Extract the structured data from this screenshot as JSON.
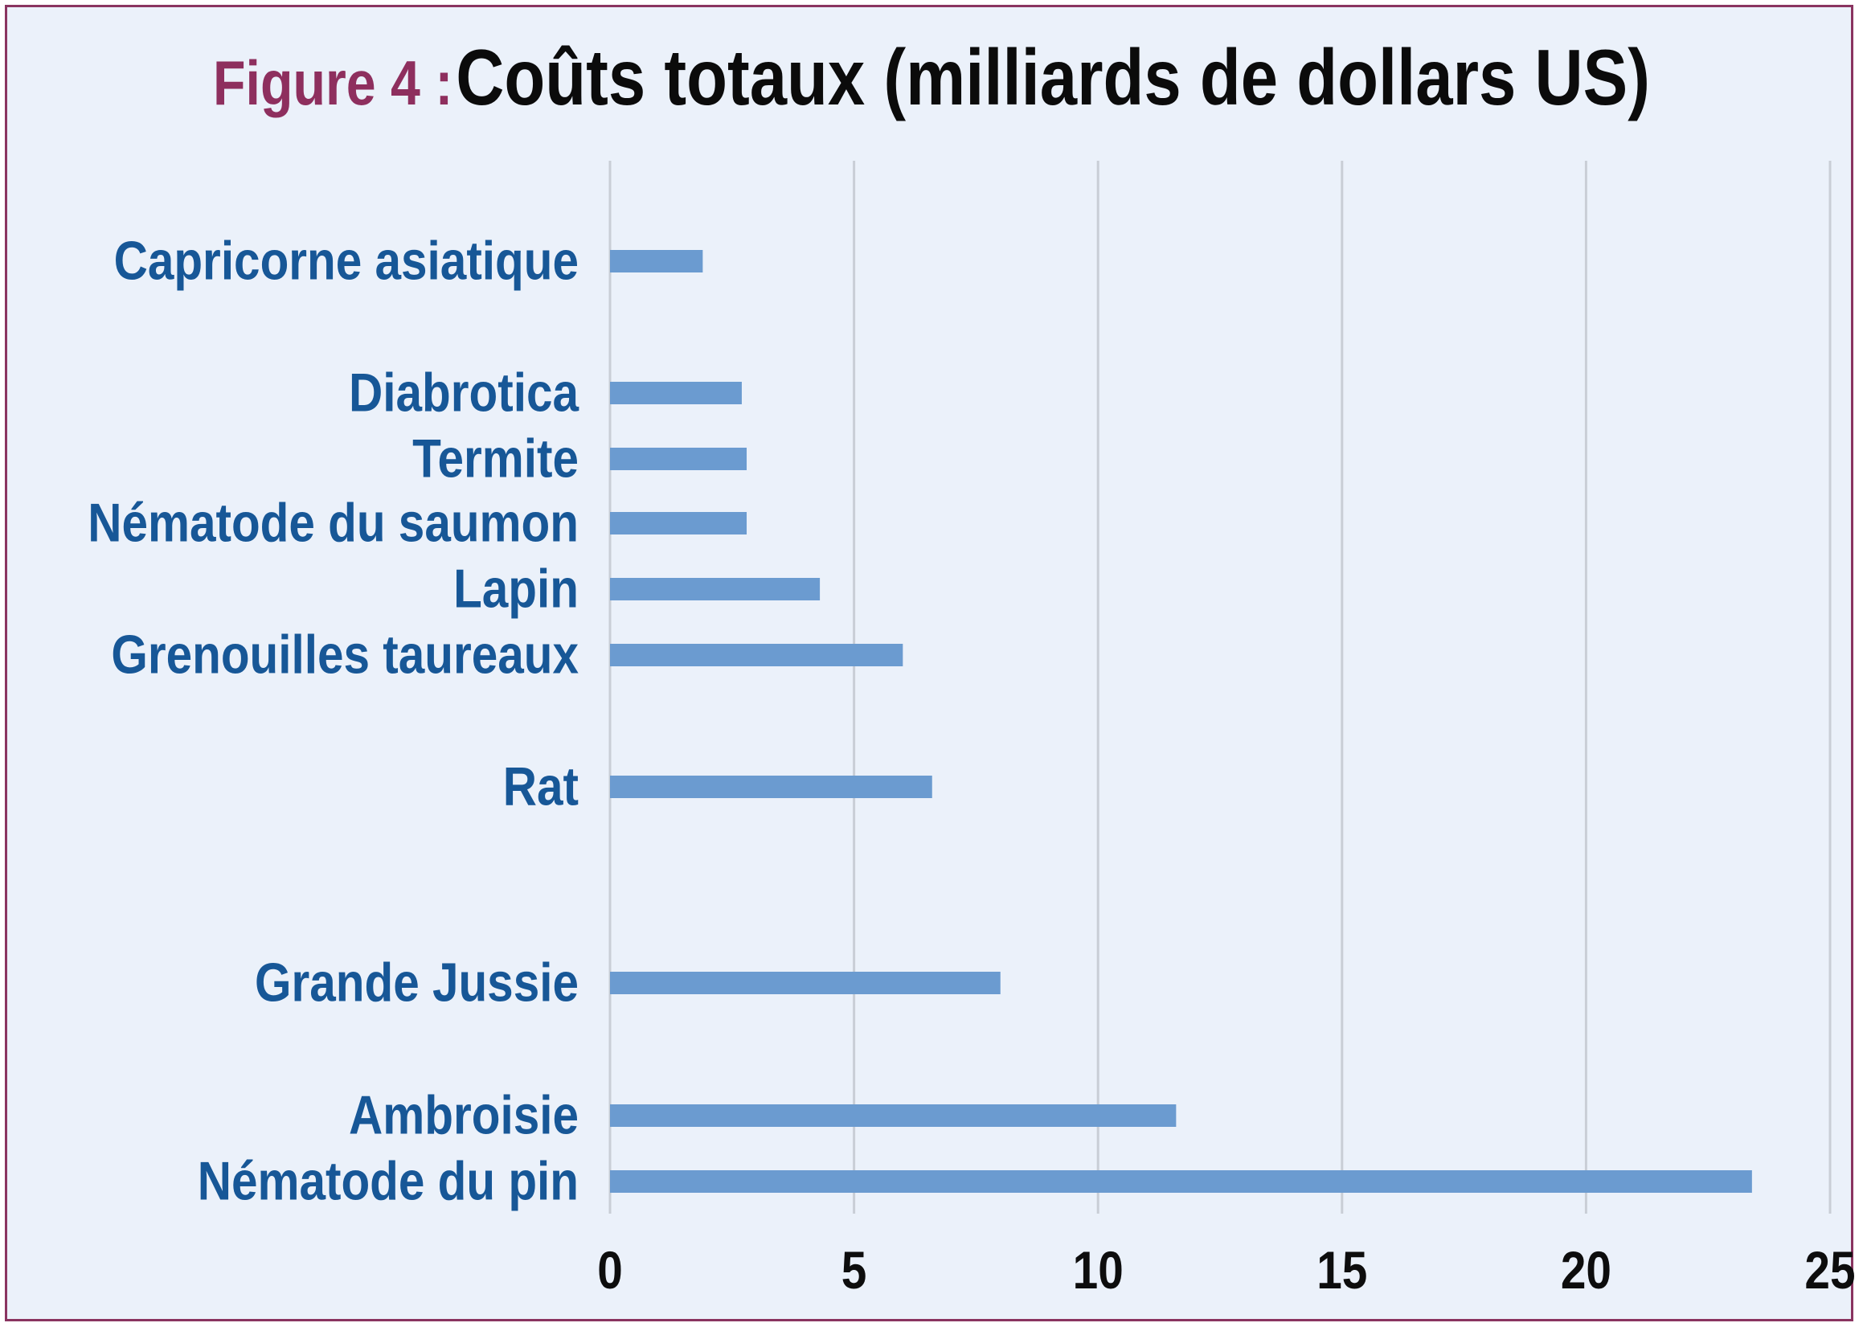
{
  "header": {
    "prefix": "Figure 4 :",
    "title": "Coûts totaux (milliards de dollars US)"
  },
  "colors": {
    "bar": "#6b9bd0",
    "label": "#175797",
    "prefix": "#8e2f5e",
    "border": "#8a3460",
    "background": "#ebf1fa",
    "grid": "#c9ced6"
  },
  "chart_data": {
    "type": "bar",
    "orientation": "horizontal",
    "title": "Coûts totaux (milliards de dollars US)",
    "categories": [
      "Capricorne asiatique",
      "Diabrotica",
      "Termite",
      "Nématode du saumon",
      "Lapin",
      "Grenouilles taureaux",
      "Rat",
      "Grande Jussie",
      "Ambroisie",
      "Nématode du pin"
    ],
    "values": [
      1.9,
      2.7,
      2.8,
      2.8,
      4.3,
      6.0,
      6.6,
      8.0,
      11.6,
      23.4
    ],
    "xlim": [
      0,
      25
    ],
    "xticks": [
      "0",
      "5",
      "10",
      "15",
      "20",
      "25"
    ],
    "grid": true,
    "legend": "none"
  }
}
